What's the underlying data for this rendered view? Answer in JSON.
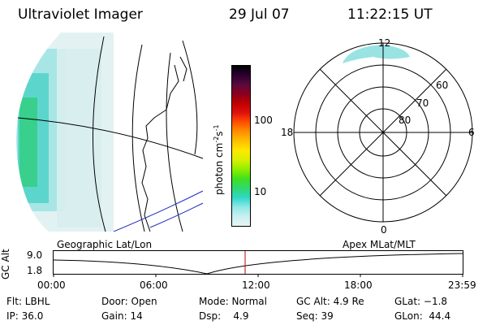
{
  "header": {
    "instrument": "Ultraviolet Imager",
    "date": "29 Jul 07",
    "time": "11:22:15 UT"
  },
  "colorbar": {
    "label": "photon cm",
    "label_sup1": "-2",
    "label_mid": "s",
    "label_sup2": "-1",
    "ticks": [
      "100",
      "10"
    ],
    "colors": [
      "#000000",
      "#2a0030",
      "#5a0a3a",
      "#8a0020",
      "#c00000",
      "#e01010",
      "#ff5000",
      "#ff9000",
      "#ffc000",
      "#ffe800",
      "#d8f000",
      "#90ee00",
      "#40e020",
      "#30d870",
      "#30d8c8",
      "#8ee8e8",
      "#c8f0f0",
      "#e8f4f4"
    ]
  },
  "polar": {
    "mlt_labels": [
      "12",
      "18",
      "6",
      "0"
    ],
    "lat_labels": [
      "60",
      "70",
      "80"
    ]
  },
  "timeline": {
    "ylabel": "GC Alt",
    "ymax": "9.0",
    "ymin": "1.8",
    "left_title": "Geographic Lat/Lon",
    "right_title": "Apex MLat/MLT",
    "time_ticks": [
      "00:00",
      "06:00",
      "12:00",
      "18:00",
      "23:59"
    ],
    "marker_color": "#c00000"
  },
  "info": {
    "flt": "Flt: LBHL",
    "ip": "IP: 36.0",
    "door": "Door: Open",
    "gain": "Gain: 14",
    "mode": "Mode: Normal",
    "dsp": "Dsp:    4.9",
    "gcalt": "GC Alt: 4.9 Re",
    "seq": "Seq: 39",
    "glat": "GLat: −1.8",
    "glon": "GLon:  44.4"
  }
}
